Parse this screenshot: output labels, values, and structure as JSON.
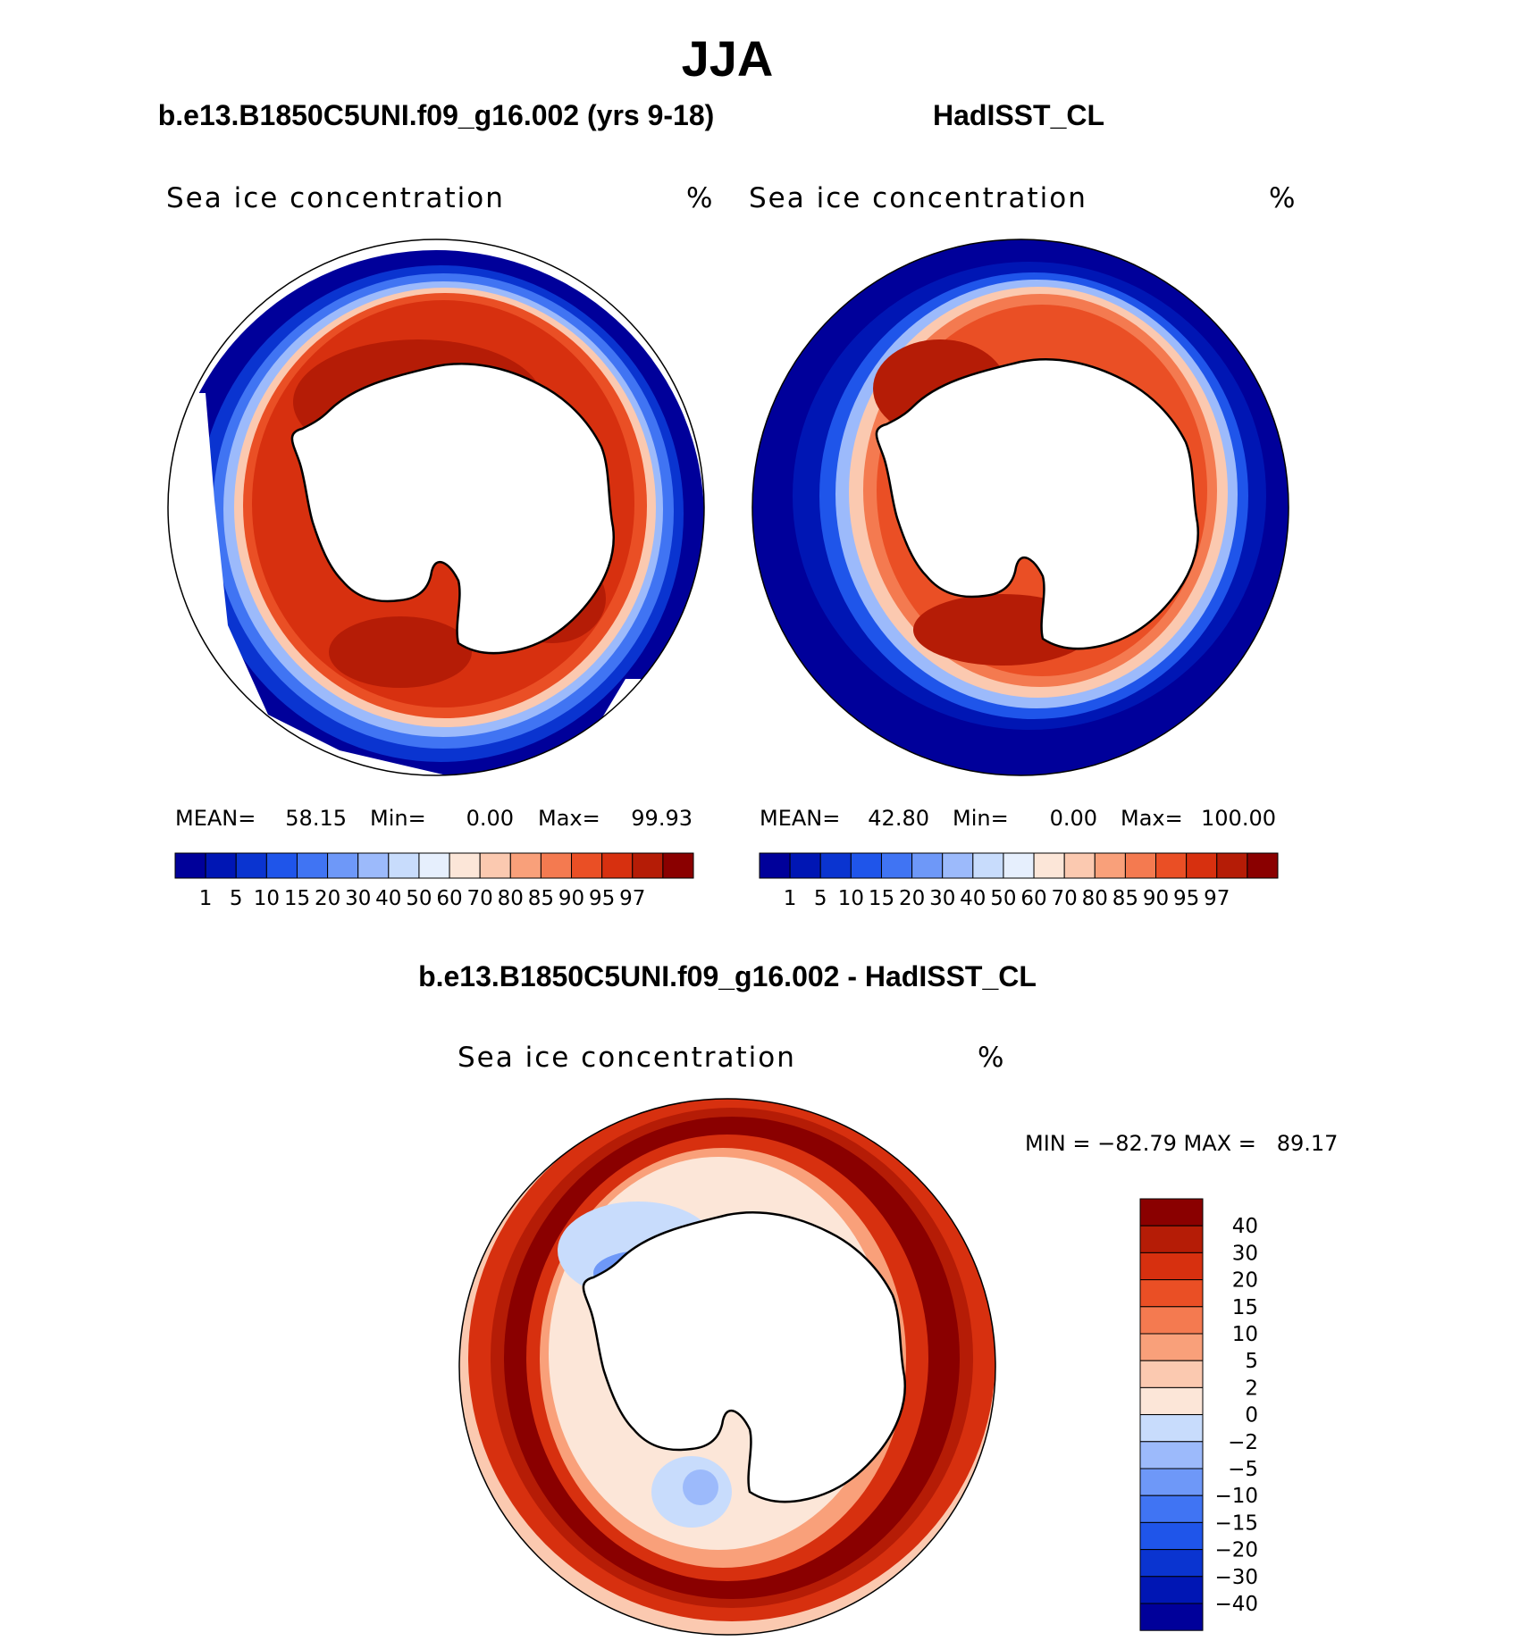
{
  "figure": {
    "title": "JJA",
    "diff_title": "b.e13.B1850C5UNI.f09_g16.002 - HadISST_CL"
  },
  "panels": [
    {
      "title": "b.e13.B1850C5UNI.f09_g16.002 (yrs 9-18)",
      "variable": "Sea ice concentration",
      "units": "%",
      "mean_label": "MEAN=",
      "mean": "58.15",
      "min_label": "Min=",
      "min": "0.00",
      "max_label": "Max=",
      "max": "99.93"
    },
    {
      "title": "HadISST_CL",
      "variable": "Sea ice concentration",
      "units": "%",
      "mean_label": "MEAN=",
      "mean": "42.80",
      "min_label": "Min=",
      "min": "0.00",
      "max_label": "Max=",
      "max": "100.00"
    }
  ],
  "diff_panel": {
    "variable": "Sea ice concentration",
    "units": "%",
    "minmax": "MIN = −82.79 MAX =   89.17"
  },
  "colorbar_levels": [
    "1",
    "5",
    "10",
    "15",
    "20",
    "30",
    "40",
    "50",
    "60",
    "70",
    "80",
    "85",
    "90",
    "95",
    "97"
  ],
  "colorbar_colors": [
    "#00009a",
    "#0016b4",
    "#0a34d0",
    "#1f55ea",
    "#4074f3",
    "#6e98f8",
    "#9cbafb",
    "#c8dcfc",
    "#e6effd",
    "#fce6d8",
    "#fbc9b0",
    "#f9a07a",
    "#f47a50",
    "#ea4f25",
    "#d7300f",
    "#b51c06",
    "#8a0000"
  ],
  "diff_levels": [
    "40",
    "30",
    "20",
    "15",
    "10",
    "5",
    "2",
    "0",
    "−2",
    "−5",
    "−10",
    "−15",
    "−20",
    "−30",
    "−40"
  ],
  "diff_colors": [
    "#8a0000",
    "#b51c06",
    "#d7300f",
    "#ea4f25",
    "#f47a50",
    "#f9a07a",
    "#fbc9b0",
    "#fce6d8",
    "#c8dcfc",
    "#9cbafb",
    "#6e98f8",
    "#4074f3",
    "#1f55ea",
    "#0a34d0",
    "#0016b4",
    "#00009a"
  ],
  "chart_data": [
    {
      "type": "heatmap",
      "title": "b.e13.B1850C5UNI.f09_g16.002 (yrs 9-18)",
      "variable": "Sea ice concentration",
      "units": "%",
      "projection": "south polar stereographic",
      "stats": {
        "mean": 58.15,
        "min": 0.0,
        "max": 99.93
      },
      "levels": [
        1,
        5,
        10,
        15,
        20,
        30,
        40,
        50,
        60,
        70,
        80,
        85,
        90,
        95,
        97
      ]
    },
    {
      "type": "heatmap",
      "title": "HadISST_CL",
      "variable": "Sea ice concentration",
      "units": "%",
      "projection": "south polar stereographic",
      "stats": {
        "mean": 42.8,
        "min": 0.0,
        "max": 100.0
      },
      "levels": [
        1,
        5,
        10,
        15,
        20,
        30,
        40,
        50,
        60,
        70,
        80,
        85,
        90,
        95,
        97
      ]
    },
    {
      "type": "heatmap",
      "title": "b.e13.B1850C5UNI.f09_g16.002 - HadISST_CL",
      "variable": "Sea ice concentration",
      "units": "%",
      "projection": "south polar stereographic",
      "stats": {
        "min": -82.79,
        "max": 89.17
      },
      "levels": [
        -40,
        -30,
        -20,
        -15,
        -10,
        -5,
        -2,
        0,
        2,
        5,
        10,
        15,
        20,
        30,
        40
      ]
    }
  ]
}
